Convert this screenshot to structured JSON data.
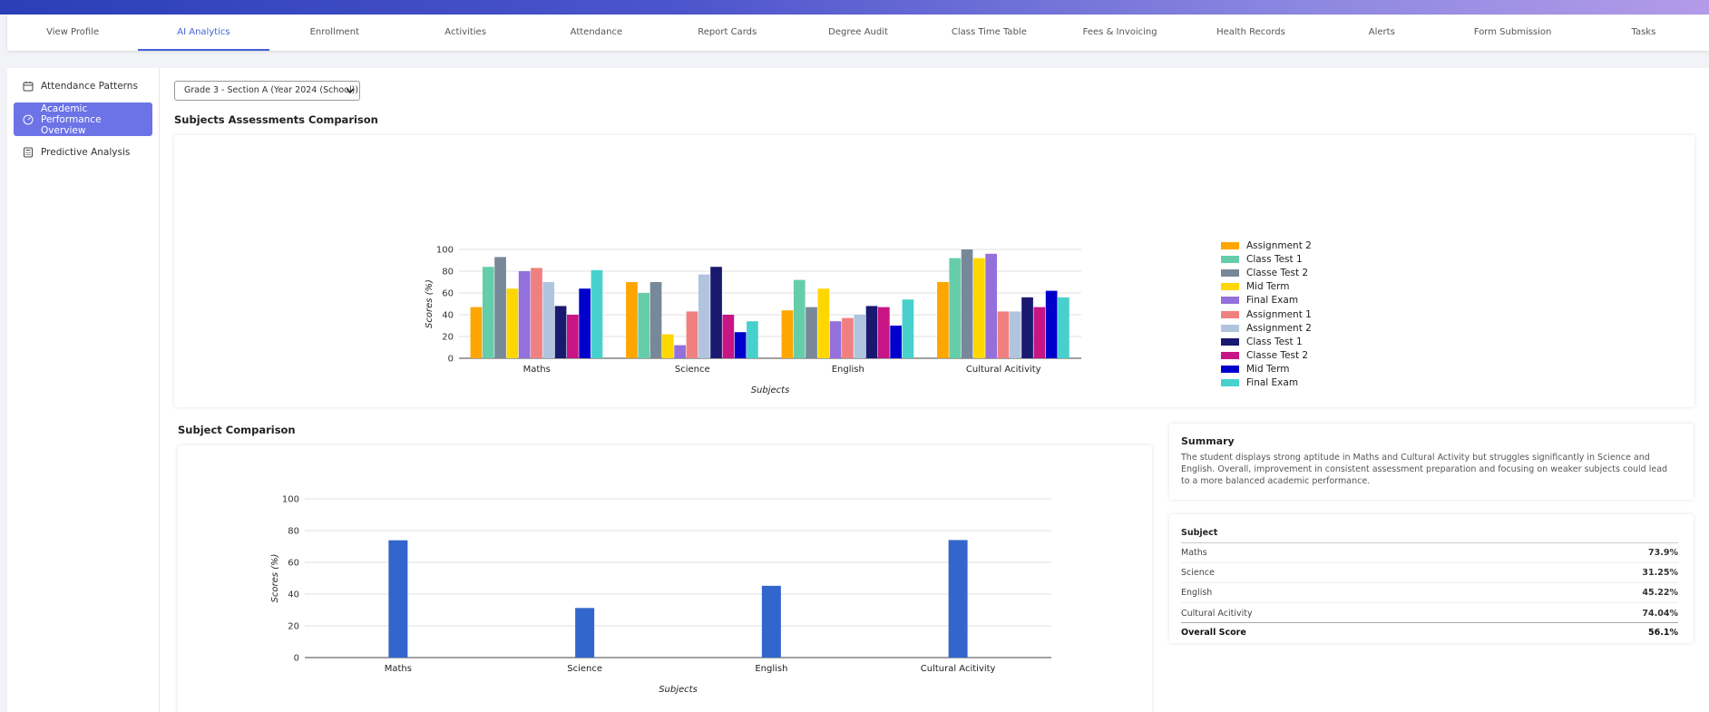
{
  "tabs": [
    {
      "label": "View Profile",
      "active": false
    },
    {
      "label": "AI Analytics",
      "active": true
    },
    {
      "label": "Enrollment",
      "active": false
    },
    {
      "label": "Activities",
      "active": false
    },
    {
      "label": "Attendance",
      "active": false
    },
    {
      "label": "Report Cards",
      "active": false
    },
    {
      "label": "Degree Audit",
      "active": false
    },
    {
      "label": "Class Time Table",
      "active": false
    },
    {
      "label": "Fees & Invoicing",
      "active": false
    },
    {
      "label": "Health Records",
      "active": false
    },
    {
      "label": "Alerts",
      "active": false
    },
    {
      "label": "Form Submission",
      "active": false
    },
    {
      "label": "Tasks",
      "active": false
    }
  ],
  "sidebar": {
    "items": [
      {
        "label": "Attendance Patterns",
        "icon": "calendar-icon",
        "active": false
      },
      {
        "label": "Academic Performance Overview",
        "icon": "gauge-icon",
        "active": true
      },
      {
        "label": "Predictive Analysis",
        "icon": "calculator-icon",
        "active": false
      }
    ]
  },
  "class_select": {
    "value": "Grade 3 - Section A (Year 2024 (School))"
  },
  "sections": {
    "assessments_title": "Subjects Assessments Comparison",
    "subject_comparison_title": "Subject Comparison"
  },
  "chart_data": [
    {
      "type": "bar",
      "title": "Subjects Assessments Comparison",
      "xlabel": "Subjects",
      "ylabel": "Scores (%)",
      "ylim": [
        0,
        100
      ],
      "yticks": [
        0,
        20,
        40,
        60,
        80,
        100
      ],
      "grid": true,
      "legend": "right",
      "categories": [
        "Maths",
        "Science",
        "English",
        "Cultural Acitivity"
      ],
      "series": [
        {
          "name": "Assignment 2",
          "color": "#FFA500",
          "values": [
            47,
            70,
            44,
            70
          ]
        },
        {
          "name": "Class Test 1",
          "color": "#66CDAA",
          "values": [
            84,
            60,
            72,
            92
          ]
        },
        {
          "name": "Classe Test 2",
          "color": "#778899",
          "values": [
            93,
            70,
            47,
            100
          ]
        },
        {
          "name": "Mid Term",
          "color": "#FFD700",
          "values": [
            64,
            22,
            64,
            92
          ]
        },
        {
          "name": "Final Exam",
          "color": "#9370DB",
          "values": [
            80,
            12,
            34,
            96
          ]
        },
        {
          "name": "Assignment 1",
          "color": "#F08080",
          "values": [
            83,
            43,
            37,
            43
          ]
        },
        {
          "name": "Assignment 2",
          "color": "#B0C4DE",
          "values": [
            70,
            77,
            40,
            43
          ]
        },
        {
          "name": "Class Test 1",
          "color": "#191970",
          "values": [
            48,
            84,
            48,
            56
          ]
        },
        {
          "name": "Classe Test 2",
          "color": "#C71585",
          "values": [
            40,
            40,
            47,
            47
          ]
        },
        {
          "name": "Mid Term",
          "color": "#0000CD",
          "values": [
            64,
            24,
            30,
            62
          ]
        },
        {
          "name": "Final Exam",
          "color": "#48D1CC",
          "values": [
            81,
            34,
            54,
            56
          ]
        }
      ]
    },
    {
      "type": "bar",
      "title": "Subject Comparison",
      "xlabel": "Subjects",
      "ylabel": "Scores (%)",
      "ylim": [
        0,
        100
      ],
      "yticks": [
        0,
        20,
        40,
        60,
        80,
        100
      ],
      "grid": true,
      "categories": [
        "Maths",
        "Science",
        "English",
        "Cultural Acitivity"
      ],
      "series": [
        {
          "color": "#3366CC",
          "values": [
            73.9,
            31.25,
            45.22,
            74.04
          ]
        }
      ]
    }
  ],
  "summary": {
    "title": "Summary",
    "text": "The student displays strong aptitude in Maths and Cultural Activity but struggles significantly in Science and English. Overall, improvement in consistent assessment preparation and focusing on weaker subjects could lead to a more balanced academic performance."
  },
  "score_table": {
    "header": "Subject",
    "rows": [
      {
        "subject": "Maths",
        "score": "73.9%"
      },
      {
        "subject": "Science",
        "score": "31.25%"
      },
      {
        "subject": "English",
        "score": "45.22%"
      },
      {
        "subject": "Cultural Acitivity",
        "score": "74.04%"
      }
    ],
    "total_label": "Overall Score",
    "total_value": "56.1%"
  }
}
